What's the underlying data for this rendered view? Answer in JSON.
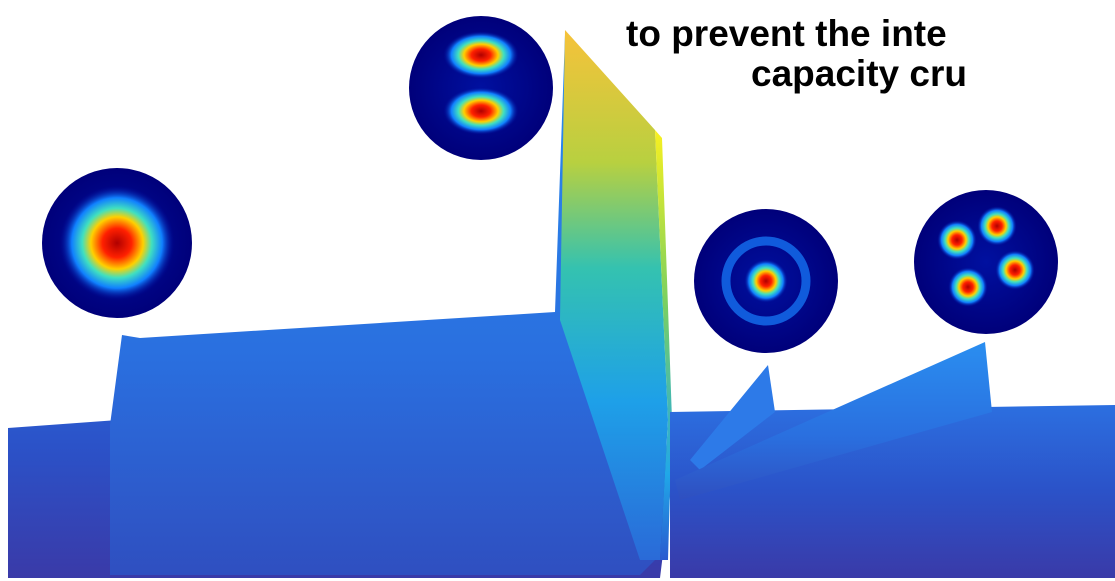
{
  "caption": {
    "lines": [
      "to prevent the inte",
      "capacity cru"
    ]
  }
}
